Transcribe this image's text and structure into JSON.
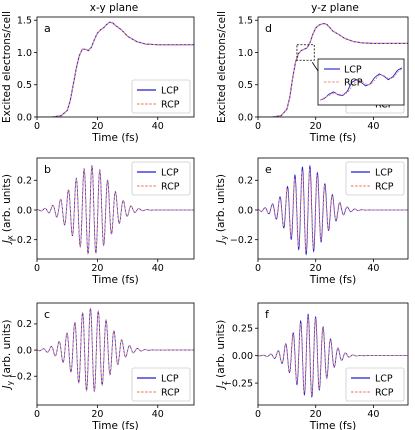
{
  "figure": {
    "col_titles": [
      "x-y plane",
      "y-z plane"
    ]
  },
  "chart_data": [
    {
      "type": "line",
      "panel_label": "a",
      "kind": "excitation",
      "xlabel": "Time (fs)",
      "ylabel": "Excited electrons/cell",
      "xlim": [
        0,
        52
      ],
      "ylim": [
        0,
        1.55
      ],
      "xticks": [
        0,
        20,
        40
      ],
      "yticks": [
        0.0,
        0.5,
        1.0,
        1.5
      ],
      "ytick_labels": [
        "0.0",
        "0.5",
        "1.0",
        "1.5"
      ],
      "series": [
        {
          "name": "LCP",
          "color": "#1f1fd6",
          "style": "solid",
          "x": [
            0,
            5,
            8,
            10,
            11,
            12,
            13,
            14,
            15,
            16,
            17,
            18,
            19,
            20,
            21,
            22,
            23,
            24,
            25,
            26,
            28,
            30,
            33,
            36,
            40,
            45,
            52
          ],
          "y": [
            0,
            0.0,
            0.02,
            0.1,
            0.25,
            0.5,
            0.75,
            0.95,
            1.05,
            1.05,
            1.03,
            1.08,
            1.2,
            1.3,
            1.35,
            1.38,
            1.43,
            1.47,
            1.46,
            1.42,
            1.35,
            1.25,
            1.17,
            1.13,
            1.12,
            1.12,
            1.12
          ]
        },
        {
          "name": "RCP",
          "color": "#f08a70",
          "style": "dashed",
          "x": [
            0,
            5,
            8,
            10,
            11,
            12,
            13,
            14,
            15,
            16,
            17,
            18,
            19,
            20,
            21,
            22,
            23,
            24,
            25,
            26,
            28,
            30,
            33,
            36,
            40,
            45,
            52
          ],
          "y": [
            0,
            0.0,
            0.02,
            0.1,
            0.25,
            0.5,
            0.75,
            0.95,
            1.05,
            1.05,
            1.03,
            1.08,
            1.2,
            1.3,
            1.35,
            1.38,
            1.43,
            1.47,
            1.46,
            1.42,
            1.35,
            1.25,
            1.17,
            1.13,
            1.12,
            1.12,
            1.12
          ]
        }
      ],
      "legend_position": "lower-right",
      "legend_labels": [
        "LCP",
        "RCP"
      ]
    },
    {
      "type": "line",
      "panel_label": "d",
      "kind": "excitation",
      "xlabel": "Time (fs)",
      "ylabel": "Excited electrons/cell",
      "xlim": [
        0,
        52
      ],
      "ylim": [
        0,
        1.55
      ],
      "xticks": [
        0,
        20,
        40
      ],
      "yticks": [
        0.0,
        0.5,
        1.0,
        1.5
      ],
      "ytick_labels": [
        "0.0",
        "0.5",
        "1.0",
        "1.5"
      ],
      "series": [
        {
          "name": "LCP",
          "color": "#1f1fd6",
          "style": "solid",
          "x": [
            0,
            5,
            8,
            10,
            11,
            12,
            13,
            14,
            15,
            16,
            17,
            18,
            19,
            20,
            21,
            22,
            23,
            24,
            25,
            26,
            28,
            30,
            33,
            36,
            40,
            45,
            52
          ],
          "y": [
            0,
            0.0,
            0.02,
            0.12,
            0.3,
            0.6,
            0.85,
            0.98,
            1.03,
            1.05,
            1.07,
            1.15,
            1.28,
            1.38,
            1.42,
            1.44,
            1.45,
            1.43,
            1.38,
            1.33,
            1.28,
            1.22,
            1.17,
            1.15,
            1.14,
            1.14,
            1.14
          ]
        },
        {
          "name": "RCP",
          "color": "#f08a70",
          "style": "dashed",
          "x": [
            0,
            5,
            8,
            10,
            11,
            12,
            13,
            14,
            15,
            16,
            17,
            18,
            19,
            20,
            21,
            22,
            23,
            24,
            25,
            26,
            28,
            30,
            33,
            36,
            40,
            45,
            52
          ],
          "y": [
            0,
            0.0,
            0.02,
            0.12,
            0.3,
            0.6,
            0.85,
            0.98,
            1.03,
            1.05,
            1.07,
            1.15,
            1.28,
            1.38,
            1.42,
            1.44,
            1.45,
            1.43,
            1.38,
            1.33,
            1.28,
            1.22,
            1.17,
            1.15,
            1.14,
            1.14,
            1.14
          ]
        }
      ],
      "legend_position": "lower-right",
      "legend_labels": [
        "LCP",
        "RCP"
      ],
      "inset": {
        "source_box_x": [
          13.5,
          19.5
        ],
        "source_box_y": [
          0.88,
          1.12
        ],
        "lcp": [
          0.05,
          0.1,
          0.22,
          0.28,
          0.2,
          0.18,
          0.3,
          0.55,
          0.62,
          0.55,
          0.45,
          0.5,
          0.68,
          0.78,
          0.72,
          0.62,
          0.7,
          0.88,
          0.95
        ],
        "rcp": [
          0.05,
          0.12,
          0.18,
          0.24,
          0.22,
          0.2,
          0.26,
          0.42,
          0.6,
          0.6,
          0.5,
          0.48,
          0.6,
          0.75,
          0.74,
          0.65,
          0.66,
          0.82,
          0.93
        ]
      }
    },
    {
      "type": "line",
      "panel_label": "b",
      "kind": "current",
      "xlabel": "Time (fs)",
      "ylabel": "J_x (arb. units)",
      "ylabel_symbol": "J",
      "ylabel_sub": "x",
      "ylabel_rest": " (arb. units)",
      "xlim": [
        0,
        52
      ],
      "ylim": [
        -0.33,
        0.35
      ],
      "xticks": [
        0,
        20,
        40
      ],
      "yticks": [
        -0.2,
        0.0,
        0.2
      ],
      "ytick_labels": [
        "−0.2",
        "0.0",
        "0.2"
      ],
      "wave": {
        "amplitude": 0.3,
        "center": 18,
        "width": 8.5,
        "period": 2.6,
        "phase": 0,
        "rcp_scale": 1.0,
        "rcp_shift": 0.0
      },
      "series": [
        {
          "name": "LCP",
          "color": "#1f1fd6",
          "style": "solid"
        },
        {
          "name": "RCP",
          "color": "#f08a70",
          "style": "dashed"
        }
      ],
      "legend_position": "upper-right",
      "legend_labels": [
        "LCP",
        "RCP"
      ]
    },
    {
      "type": "line",
      "panel_label": "e",
      "kind": "current",
      "xlabel": "Time (fs)",
      "ylabel": "J_y (arb. units)",
      "ylabel_symbol": "J",
      "ylabel_sub": "y",
      "ylabel_rest": " (arb. units)",
      "xlim": [
        0,
        52
      ],
      "ylim": [
        -0.33,
        0.35
      ],
      "xticks": [
        0,
        20,
        40
      ],
      "yticks": [
        -0.2,
        0.0,
        0.2
      ],
      "ytick_labels": [
        "−0.2",
        "0.0",
        "0.2"
      ],
      "wave": {
        "amplitude": 0.3,
        "center": 17,
        "width": 8.5,
        "period": 2.6,
        "phase": 0.5,
        "rcp_scale": 0.92,
        "rcp_shift": 0.25
      },
      "series": [
        {
          "name": "LCP",
          "color": "#1f1fd6",
          "style": "solid"
        },
        {
          "name": "RCP",
          "color": "#f08a70",
          "style": "dashed"
        }
      ],
      "legend_position": "upper-right",
      "legend_labels": [
        "LCP",
        "RCP"
      ]
    },
    {
      "type": "line",
      "panel_label": "c",
      "kind": "current",
      "xlabel": "Time (fs)",
      "ylabel": "J_y (arb. units)",
      "ylabel_symbol": "J",
      "ylabel_sub": "y",
      "ylabel_rest": " (arb. units)",
      "xlim": [
        0,
        52
      ],
      "ylim": [
        -0.42,
        0.36
      ],
      "xticks": [
        0,
        20,
        40
      ],
      "yticks": [
        -0.2,
        0.0,
        0.2
      ],
      "ytick_labels": [
        "−0.2",
        "0.0",
        "0.2"
      ],
      "wave": {
        "amplitude": 0.32,
        "center": 18,
        "width": 8.5,
        "period": 2.6,
        "phase": 1.2,
        "rcp_scale": 1.0,
        "rcp_shift": 0.0
      },
      "series": [
        {
          "name": "LCP",
          "color": "#1f1fd6",
          "style": "solid"
        },
        {
          "name": "RCP",
          "color": "#f08a70",
          "style": "dashed"
        }
      ],
      "legend_position": "lower-right",
      "legend_labels": [
        "LCP",
        "RCP"
      ]
    },
    {
      "type": "line",
      "panel_label": "f",
      "kind": "current",
      "xlabel": "Time (fs)",
      "ylabel": "J_z (arb. units)",
      "ylabel_symbol": "J",
      "ylabel_sub": "z",
      "ylabel_rest": " (arb. units)",
      "xlim": [
        0,
        52
      ],
      "ylim": [
        -0.45,
        0.48
      ],
      "xticks": [
        0,
        20,
        40
      ],
      "yticks": [
        -0.25,
        0.0,
        0.25
      ],
      "ytick_labels": [
        "−0.25",
        "0.00",
        "0.25"
      ],
      "wave": {
        "amplitude": 0.38,
        "center": 18,
        "width": 7.5,
        "period": 2.6,
        "phase": 2.0,
        "rcp_scale": 0.95,
        "rcp_shift": 0.2
      },
      "series": [
        {
          "name": "LCP",
          "color": "#1f1fd6",
          "style": "solid"
        },
        {
          "name": "RCP",
          "color": "#f08a70",
          "style": "dashed"
        }
      ],
      "legend_position": "lower-right",
      "legend_labels": [
        "LCP",
        "RCP"
      ]
    }
  ]
}
